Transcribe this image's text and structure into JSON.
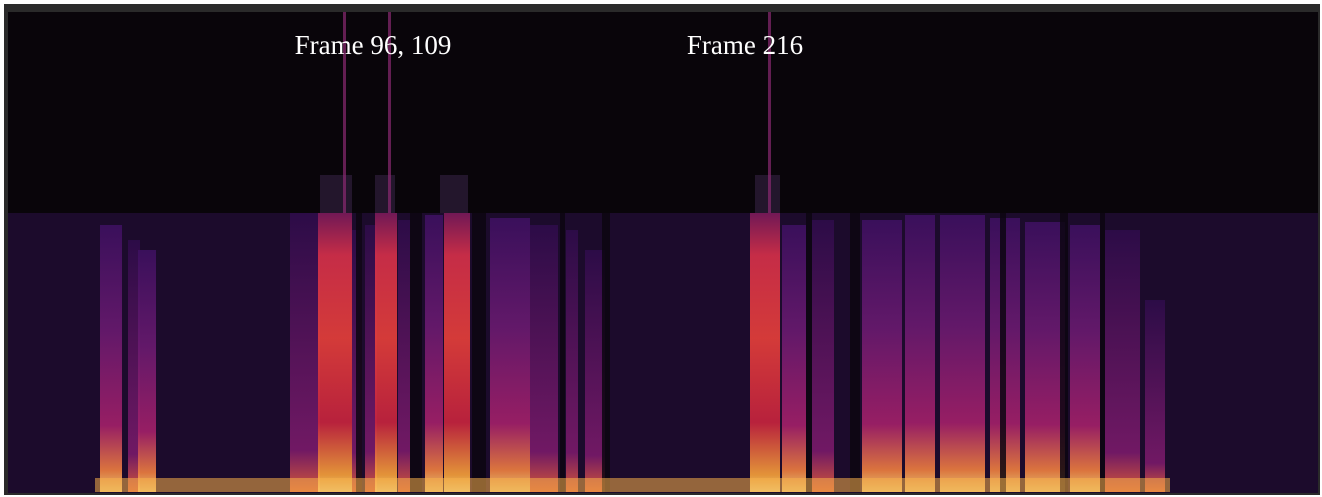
{
  "labels": [
    "Frame 96, 109",
    "Frame 216"
  ]
}
